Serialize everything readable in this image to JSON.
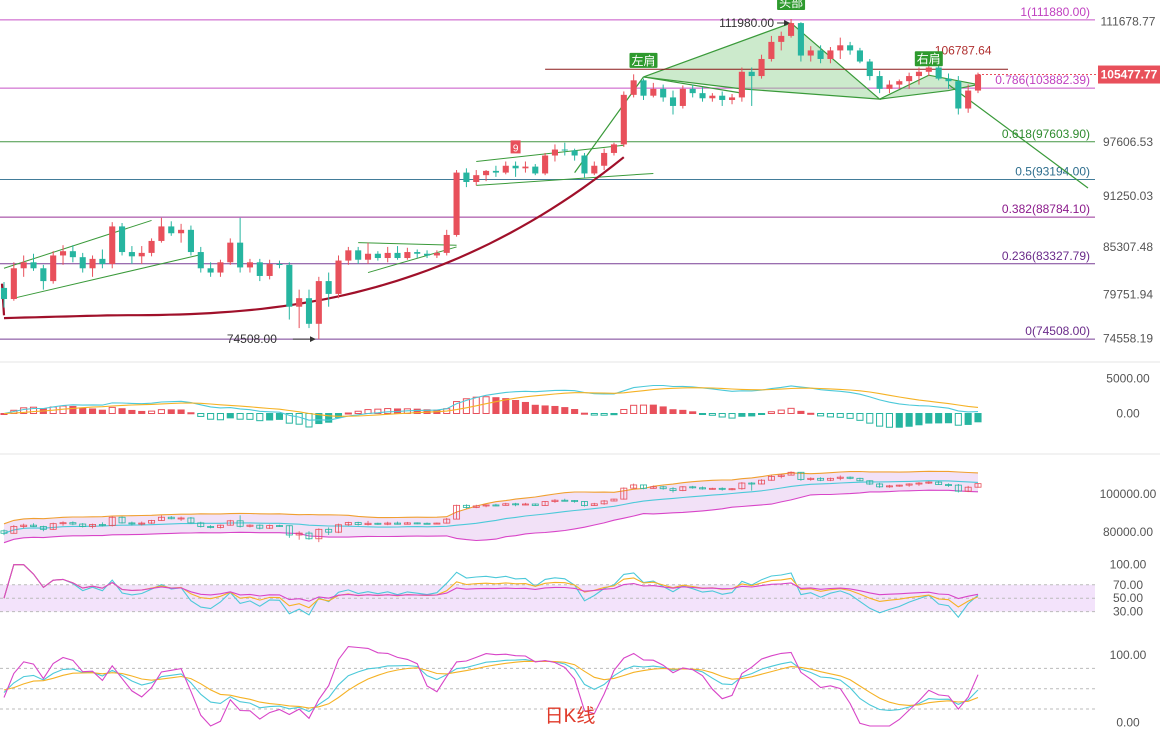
{
  "chart_data": {
    "type": "candlestick",
    "title": "",
    "caption": "日K线",
    "main_axis": {
      "ticks": [
        "111678.77",
        "97606.53",
        "91250.03",
        "85307.48",
        "79751.94",
        "74558.19"
      ],
      "tick_values": [
        111678.77,
        97606.53,
        91250.03,
        85307.48,
        79751.94,
        74558.19
      ],
      "ylim": [
        73000,
        113500
      ],
      "current_price_label": "105477.77",
      "current_price": 105477.77
    },
    "fib_levels": [
      {
        "label": "1(111880.00)",
        "value": 111880.0,
        "color": "#c040c0"
      },
      {
        "label": "0.786(103882.39)",
        "value": 103882.39,
        "color": "#c040c0"
      },
      {
        "label": "0.618(97603.90)",
        "value": 97603.9,
        "color": "#2e8b2e"
      },
      {
        "label": "0.5(93194.00)",
        "value": 93194.0,
        "color": "#2e6e8e"
      },
      {
        "label": "0.382(88784.10)",
        "value": 88784.1,
        "color": "#8b1a8b"
      },
      {
        "label": "0.236(83327.79)",
        "value": 83327.79,
        "color": "#6a2a8a"
      },
      {
        "label": "0(74508.00)",
        "value": 74508.0,
        "color": "#6a2a8a"
      }
    ],
    "annotations": [
      {
        "text": "111980.00",
        "value": 111980.0
      },
      {
        "text": "74508.00",
        "value": 74508.0
      },
      {
        "text": "106787.64",
        "value": 106787.64
      },
      {
        "text": "左肩"
      },
      {
        "text": "头部"
      },
      {
        "text": "右肩"
      },
      {
        "text": "9"
      }
    ],
    "candles": [
      [
        80500,
        81200,
        78200,
        79200
      ],
      [
        79200,
        83500,
        79000,
        82800
      ],
      [
        82800,
        84300,
        81800,
        83500
      ],
      [
        83500,
        84500,
        82500,
        82800
      ],
      [
        82800,
        83200,
        80300,
        81300
      ],
      [
        81300,
        84800,
        81000,
        84300
      ],
      [
        84300,
        85500,
        83200,
        84800
      ],
      [
        84800,
        85500,
        83500,
        84100
      ],
      [
        84100,
        84600,
        82300,
        82800
      ],
      [
        82800,
        84300,
        81800,
        83900
      ],
      [
        83900,
        85000,
        82800,
        83300
      ],
      [
        83300,
        88200,
        82800,
        87700
      ],
      [
        87700,
        88100,
        84300,
        84700
      ],
      [
        84700,
        85400,
        83300,
        84200
      ],
      [
        84200,
        85400,
        83300,
        84600
      ],
      [
        84600,
        86300,
        84200,
        86000
      ],
      [
        86000,
        88700,
        85800,
        87700
      ],
      [
        87700,
        88300,
        86600,
        86900
      ],
      [
        86900,
        88000,
        85800,
        87300
      ],
      [
        87300,
        87800,
        84300,
        84700
      ],
      [
        84700,
        85300,
        82300,
        82800
      ],
      [
        82800,
        83500,
        81800,
        82300
      ],
      [
        82300,
        83800,
        81800,
        83500
      ],
      [
        83500,
        86300,
        83200,
        85800
      ],
      [
        85800,
        88700,
        82300,
        82900
      ],
      [
        82900,
        83900,
        82300,
        83500
      ],
      [
        83500,
        83900,
        81300,
        81900
      ],
      [
        81900,
        83800,
        81500,
        83300
      ],
      [
        83300,
        83700,
        82800,
        83200
      ],
      [
        83200,
        83500,
        76800,
        78300
      ],
      [
        78300,
        80300,
        75800,
        79300
      ],
      [
        79300,
        80300,
        75800,
        76300
      ],
      [
        76300,
        81800,
        74508,
        81300
      ],
      [
        81300,
        82300,
        78300,
        79800
      ],
      [
        79800,
        84300,
        79300,
        83700
      ],
      [
        83700,
        85300,
        83200,
        84900
      ],
      [
        84900,
        85300,
        83300,
        83800
      ],
      [
        83800,
        85800,
        83300,
        84500
      ],
      [
        84500,
        84800,
        83700,
        84000
      ],
      [
        84000,
        85300,
        83500,
        84600
      ],
      [
        84600,
        85400,
        83800,
        84000
      ],
      [
        84000,
        85200,
        83800,
        84700
      ],
      [
        84700,
        85000,
        84000,
        84500
      ],
      [
        84500,
        84900,
        84000,
        84300
      ],
      [
        84300,
        84900,
        84000,
        84600
      ],
      [
        84600,
        87300,
        84300,
        86700
      ],
      [
        86700,
        94300,
        86500,
        94000
      ],
      [
        94000,
        94500,
        92300,
        92900
      ],
      [
        92900,
        94300,
        92500,
        93700
      ],
      [
        93700,
        94300,
        93000,
        94200
      ],
      [
        94200,
        94800,
        93500,
        94000
      ],
      [
        94000,
        95300,
        93800,
        94800
      ],
      [
        94800,
        95300,
        93500,
        94500
      ],
      [
        94500,
        95300,
        94000,
        94700
      ],
      [
        94700,
        95000,
        93700,
        93900
      ],
      [
        93900,
        96300,
        93700,
        96000
      ],
      [
        96000,
        97300,
        95300,
        96700
      ],
      [
        96700,
        97500,
        96000,
        96600
      ],
      [
        96600,
        96800,
        95400,
        96000
      ],
      [
        96000,
        96300,
        93400,
        93900
      ],
      [
        93900,
        95300,
        93700,
        94800
      ],
      [
        94800,
        96800,
        94300,
        96300
      ],
      [
        96300,
        97500,
        96000,
        97300
      ],
      [
        97300,
        103500,
        97000,
        103100
      ],
      [
        103100,
        105500,
        102800,
        104800
      ],
      [
        104800,
        105000,
        102500,
        103000
      ],
      [
        103000,
        104500,
        102800,
        103800
      ],
      [
        103800,
        104300,
        102300,
        102800
      ],
      [
        102800,
        103600,
        100800,
        101800
      ],
      [
        101800,
        104200,
        101500,
        103800
      ],
      [
        103800,
        104300,
        102800,
        103300
      ],
      [
        103300,
        104000,
        102300,
        102700
      ],
      [
        102700,
        103300,
        102300,
        103000
      ],
      [
        103000,
        103500,
        101800,
        102500
      ],
      [
        102500,
        103200,
        102000,
        102800
      ],
      [
        102800,
        106300,
        102300,
        105800
      ],
      [
        105800,
        106300,
        101800,
        105300
      ],
      [
        105300,
        107800,
        105000,
        107300
      ],
      [
        107300,
        110000,
        107000,
        109300
      ],
      [
        109300,
        110500,
        108300,
        110000
      ],
      [
        110000,
        111980,
        109800,
        111500
      ],
      [
        111500,
        111600,
        107000,
        107700
      ],
      [
        107700,
        108800,
        107000,
        108300
      ],
      [
        108300,
        108900,
        106800,
        107300
      ],
      [
        107300,
        108700,
        106800,
        108300
      ],
      [
        108300,
        109800,
        107300,
        108900
      ],
      [
        108900,
        109300,
        107800,
        108300
      ],
      [
        108300,
        108600,
        106800,
        107000
      ],
      [
        107000,
        107300,
        104800,
        105300
      ],
      [
        105300,
        105900,
        103300,
        103800
      ],
      [
        103800,
        104800,
        103300,
        104300
      ],
      [
        104300,
        104900,
        103800,
        104700
      ],
      [
        104700,
        105700,
        103800,
        105300
      ],
      [
        105300,
        106300,
        104300,
        105800
      ],
      [
        105800,
        106800,
        105300,
        106300
      ],
      [
        106300,
        106800,
        104800,
        105000
      ],
      [
        105000,
        105600,
        103800,
        104700
      ],
      [
        104700,
        105300,
        100800,
        101500
      ],
      [
        101500,
        104300,
        101000,
        103600
      ],
      [
        103600,
        105700,
        103300,
        105477.77
      ]
    ],
    "macd": {
      "ticks": [
        "5000.00",
        "0.00"
      ],
      "tick_values": [
        5000,
        0
      ],
      "ylim": [
        -4500,
        6500
      ]
    },
    "bollinger": {
      "ticks": [
        "100000.00",
        "80000.00"
      ],
      "tick_values": [
        100000,
        80000
      ],
      "ylim": [
        73000,
        118000
      ]
    },
    "rsi": {
      "ticks": [
        "100.00",
        "70.00",
        "50.00",
        "30.00"
      ],
      "tick_values": [
        100,
        70,
        50,
        30
      ],
      "ylim": [
        10,
        110
      ]
    },
    "kdj": {
      "ticks": [
        "100.00",
        "0.00"
      ],
      "tick_values": [
        100,
        0
      ],
      "ylim": [
        -8,
        122
      ]
    },
    "colors": {
      "up": "#e8505b",
      "down": "#26b5a0",
      "macd_dif": "#4cc9d9",
      "macd_dea": "#f5b225",
      "boll_upper": "#f0a030",
      "boll_lower": "#d845c8",
      "boll_mid": "#4cc9d9",
      "rsi1": "#4cc9d9",
      "rsi2": "#f5b225",
      "rsi3": "#d845c8",
      "price_tag": "#e8505b",
      "neckline": "#8b1a1a",
      "pattern": "#3a9a3a",
      "arc": "#a0102a"
    }
  }
}
